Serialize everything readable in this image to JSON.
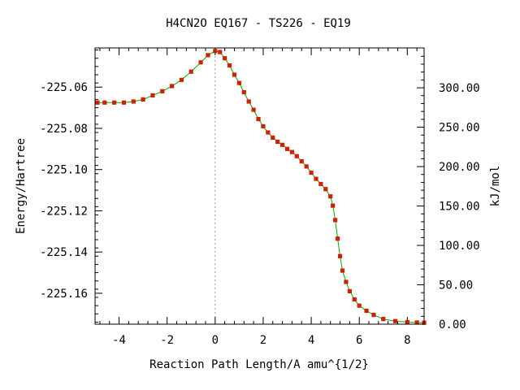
{
  "chart_data": {
    "type": "scatter",
    "title": "H4CN2O   EQ167 - TS226 - EQ19",
    "xlabel": "Reaction Path Length/A amu^{1/2}",
    "ylabel": "Energy/Hartree",
    "y2label": "kJ/mol",
    "xlim": [
      -5.0,
      8.7
    ],
    "ylim": [
      -225.175,
      -225.041
    ],
    "y2lim": [
      0,
      350.6
    ],
    "x_ticks": [
      -4,
      -2,
      0,
      2,
      4,
      6,
      8
    ],
    "x_tick_labels": [
      "-4",
      "-2",
      "0",
      "2",
      "4",
      "6",
      "8"
    ],
    "y_ticks": [
      -225.06,
      -225.08,
      -225.1,
      -225.12,
      -225.14,
      -225.16
    ],
    "y_tick_labels": [
      "-225.06",
      "-225.08",
      "-225.10",
      "-225.12",
      "-225.14",
      "-225.16"
    ],
    "y2_ticks": [
      0,
      50,
      100,
      150,
      200,
      250,
      300
    ],
    "y2_tick_labels": [
      "0.00",
      "50.00",
      "100.00",
      "150.00",
      "200.00",
      "250.00",
      "300.00"
    ],
    "ts_marker_x": 0,
    "grid": false,
    "colors": {
      "points": "#cc2200",
      "line": "#00aa00",
      "ts_line": "#999999"
    },
    "series": [
      {
        "points": [
          [
            -4.9,
            -225.0675
          ],
          [
            -4.6,
            -225.0675
          ],
          [
            -4.2,
            -225.0675
          ],
          [
            -3.8,
            -225.0675
          ],
          [
            -3.4,
            -225.067
          ],
          [
            -3.0,
            -225.066
          ],
          [
            -2.6,
            -225.064
          ],
          [
            -2.2,
            -225.062
          ],
          [
            -1.8,
            -225.0595
          ],
          [
            -1.4,
            -225.0565
          ],
          [
            -1.0,
            -225.0525
          ],
          [
            -0.6,
            -225.048
          ],
          [
            -0.3,
            -225.0445
          ],
          [
            0.0,
            -225.0425
          ],
          [
            0.2,
            -225.043
          ],
          [
            0.4,
            -225.046
          ],
          [
            0.6,
            -225.0495
          ],
          [
            0.8,
            -225.054
          ],
          [
            1.0,
            -225.058
          ],
          [
            1.2,
            -225.0625
          ],
          [
            1.4,
            -225.067
          ],
          [
            1.6,
            -225.071
          ],
          [
            1.8,
            -225.0755
          ],
          [
            2.0,
            -225.079
          ],
          [
            2.2,
            -225.082
          ],
          [
            2.4,
            -225.0845
          ],
          [
            2.6,
            -225.0865
          ],
          [
            2.8,
            -225.088
          ],
          [
            3.0,
            -225.09
          ],
          [
            3.2,
            -225.0915
          ],
          [
            3.4,
            -225.0935
          ],
          [
            3.6,
            -225.096
          ],
          [
            3.8,
            -225.0985
          ],
          [
            4.0,
            -225.1015
          ],
          [
            4.2,
            -225.1045
          ],
          [
            4.4,
            -225.107
          ],
          [
            4.6,
            -225.1095
          ],
          [
            4.8,
            -225.113
          ],
          [
            4.9,
            -225.1175
          ],
          [
            5.0,
            -225.1245
          ],
          [
            5.1,
            -225.1335
          ],
          [
            5.2,
            -225.142
          ],
          [
            5.3,
            -225.149
          ],
          [
            5.45,
            -225.1545
          ],
          [
            5.6,
            -225.159
          ],
          [
            5.8,
            -225.163
          ],
          [
            6.0,
            -225.166
          ],
          [
            6.3,
            -225.1685
          ],
          [
            6.6,
            -225.1705
          ],
          [
            7.0,
            -225.1725
          ],
          [
            7.5,
            -225.1735
          ],
          [
            8.0,
            -225.174
          ],
          [
            8.4,
            -225.1742
          ],
          [
            8.7,
            -225.1743
          ]
        ]
      }
    ]
  }
}
